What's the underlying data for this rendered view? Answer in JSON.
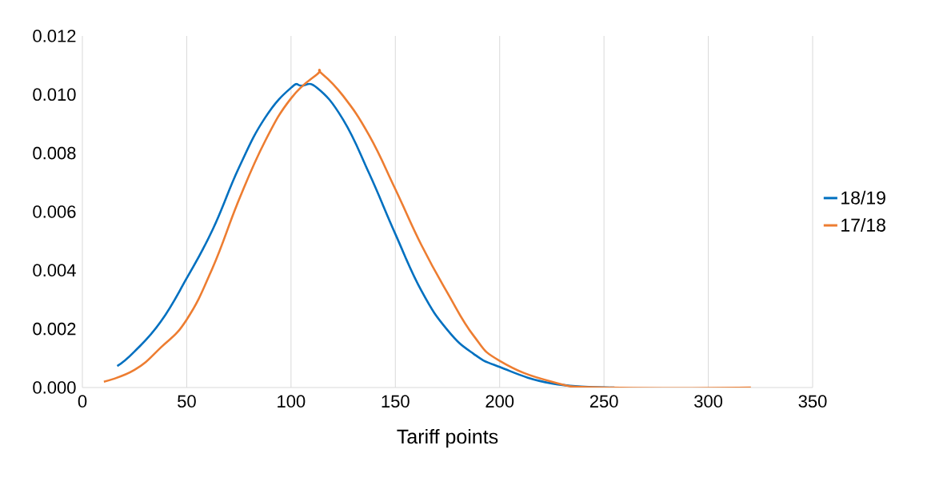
{
  "chart_data": {
    "type": "line",
    "xlabel": "Tariff points",
    "series": [
      {
        "name": "18/19",
        "color": "#0070c0",
        "x": [
          16.7,
          25,
          37.5,
          50,
          62.5,
          75,
          87.5,
          100,
          105,
          112.5,
          125,
          137.5,
          150,
          162.5,
          175,
          187.5,
          200,
          225,
          255
        ],
        "values": [
          0.00073,
          0.00123,
          0.00224,
          0.00373,
          0.0054,
          0.0075,
          0.0092,
          0.01023,
          0.0103,
          0.01023,
          0.00914,
          0.0073,
          0.00524,
          0.0033,
          0.00196,
          0.00115,
          0.0007,
          0.00014,
          0.0
        ]
      },
      {
        "name": "17/18",
        "color": "#ed7d31",
        "x": [
          10.3,
          25,
          37.5,
          50,
          62.5,
          75,
          87.5,
          100,
          112.5,
          114.5,
          125,
          137.5,
          150,
          162.5,
          175,
          187.5,
          200,
          225,
          250,
          320.4
        ],
        "values": [
          0.0002,
          0.0006,
          0.00136,
          0.00232,
          0.0041,
          0.0064,
          0.0084,
          0.00987,
          0.01069,
          0.01073,
          0.00995,
          0.0086,
          0.00677,
          0.00486,
          0.00323,
          0.00177,
          0.00091,
          0.0002,
          0.0,
          0.0
        ]
      }
    ],
    "xlim": [
      0,
      350
    ],
    "xticks": [
      0,
      50,
      100,
      150,
      200,
      250,
      300,
      350
    ],
    "ylim": [
      0,
      0.012
    ],
    "yticks": [
      {
        "value": 0,
        "label": "0.000"
      },
      {
        "value": 0.002,
        "label": "0.002"
      },
      {
        "value": 0.004,
        "label": "0.004"
      },
      {
        "value": 0.006,
        "label": "0.006"
      },
      {
        "value": 0.008,
        "label": "0.008"
      },
      {
        "value": 0.01,
        "label": "0.010"
      },
      {
        "value": 0.012,
        "label": "0.012"
      }
    ],
    "grid": "x",
    "legend": "right",
    "marker": "none",
    "line_style": "solid"
  }
}
